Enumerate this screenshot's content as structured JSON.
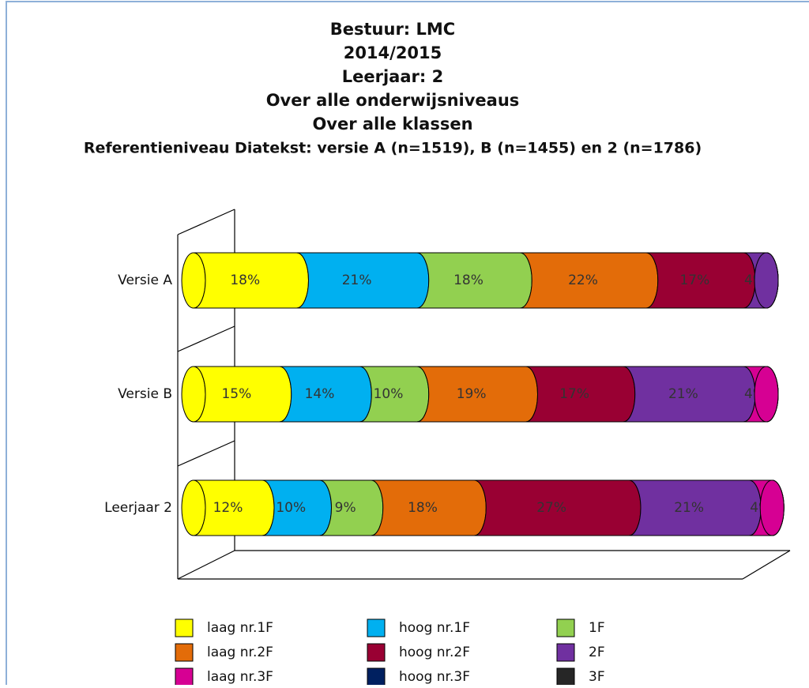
{
  "chart_data": {
    "type": "stacked_bar_100_horizontal_cylinder",
    "title": [
      "Bestuur: LMC",
      "2014/2015",
      "Leerjaar: 2",
      "Over alle onderwijsniveaus",
      "Over alle klassen",
      "Referentieniveau Diatekst: versie A (n=1519), B (n=1455) en 2 (n=1786)"
    ],
    "categories": [
      "Versie A",
      "Versie B",
      "Leerjaar 2"
    ],
    "xlim": [
      0,
      100
    ],
    "legend": "bottom",
    "series": [
      {
        "name": "laag nr.1F",
        "color": "#ffff00",
        "values": [
          18,
          15,
          12
        ],
        "value_labels": [
          "18%",
          "15%",
          "12%"
        ]
      },
      {
        "name": "hoog nr.1F",
        "color": "#00b0f0",
        "values": [
          21,
          14,
          10
        ],
        "value_labels": [
          "21%",
          "14%",
          "10%"
        ]
      },
      {
        "name": "1F",
        "color": "#92d050",
        "values": [
          18,
          10,
          9
        ],
        "value_labels": [
          "18%",
          "10%",
          "9%"
        ]
      },
      {
        "name": "laag nr.2F",
        "color": "#e36c09",
        "values": [
          22,
          19,
          18
        ],
        "value_labels": [
          "22%",
          "19%",
          "18%"
        ]
      },
      {
        "name": "hoog nr.2F",
        "color": "#990033",
        "values": [
          17,
          17,
          27
        ],
        "value_labels": [
          "17%",
          "17%",
          "27%"
        ]
      },
      {
        "name": "2F",
        "color": "#7030a0",
        "values": [
          4,
          21,
          21
        ],
        "value_labels": [
          "4%",
          "21%",
          "21%"
        ]
      },
      {
        "name": "laag nr.3F",
        "color": "#d60093",
        "values": [
          0,
          4,
          4
        ],
        "value_labels": [
          null,
          "4%",
          "4%"
        ]
      },
      {
        "name": "hoog nr.3F",
        "color": "#002060",
        "values": [
          0,
          0,
          0
        ],
        "value_labels": [
          null,
          null,
          null
        ]
      },
      {
        "name": "3F",
        "color": "#262626",
        "values": [
          0,
          0,
          0
        ],
        "value_labels": [
          null,
          null,
          null
        ]
      }
    ]
  }
}
